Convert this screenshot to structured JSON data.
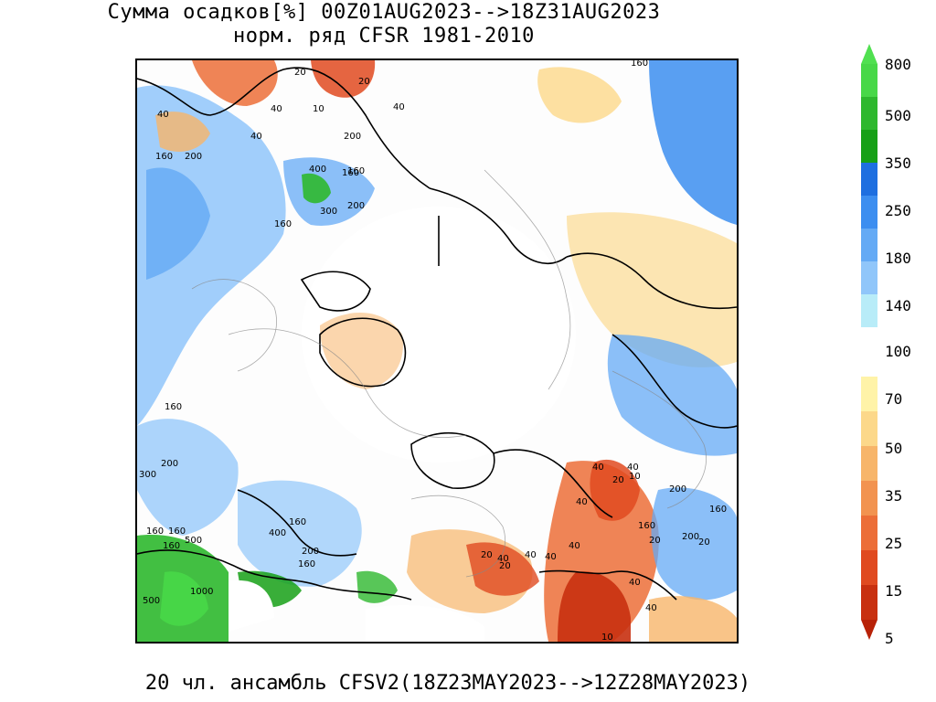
{
  "title": {
    "line1": "Сумма осадков[%] 00Z01AUG2023-->18Z31AUG2023",
    "line2": "норм. ряд CFSR 1981-2010"
  },
  "footer": "20 чл. ансамбль CFSV2(18Z23MAY2023-->12Z28MAY2023)",
  "colorbar": {
    "levels": [
      "800",
      "500",
      "350",
      "250",
      "180",
      "140",
      "100",
      "70",
      "50",
      "35",
      "25",
      "15",
      "5"
    ],
    "colors_wet": [
      "#48d848",
      "#2eb82e",
      "#16a016",
      "#1e6fe0",
      "#3c8ef0",
      "#64aaf5",
      "#90c6fa",
      "#b8ecf8"
    ],
    "colors_dry": [
      "#fff3a8",
      "#fcd88a",
      "#f7b56a",
      "#f29350",
      "#ec6e38",
      "#e04a20",
      "#c83010"
    ],
    "top_arrow_color": "#50e050",
    "bottom_arrow_color": "#b82208"
  },
  "map": {
    "contour_labels": [
      {
        "text": "20"
      },
      {
        "text": "20"
      },
      {
        "text": "10"
      },
      {
        "text": "40"
      },
      {
        "text": "40"
      },
      {
        "text": "40"
      },
      {
        "text": "40"
      },
      {
        "text": "200"
      },
      {
        "text": "160"
      },
      {
        "text": "200"
      },
      {
        "text": "160"
      },
      {
        "text": "400"
      },
      {
        "text": "160"
      },
      {
        "text": "300"
      },
      {
        "text": "200"
      },
      {
        "text": "160"
      },
      {
        "text": "200"
      },
      {
        "text": "300"
      },
      {
        "text": "160"
      },
      {
        "text": "160"
      },
      {
        "text": "400"
      },
      {
        "text": "500"
      },
      {
        "text": "1000"
      },
      {
        "text": "500"
      },
      {
        "text": "160"
      },
      {
        "text": "200"
      },
      {
        "text": "160"
      },
      {
        "text": "40"
      },
      {
        "text": "40"
      },
      {
        "text": "20"
      },
      {
        "text": "10"
      },
      {
        "text": "40"
      },
      {
        "text": "200"
      },
      {
        "text": "160"
      },
      {
        "text": "160"
      },
      {
        "text": "20"
      },
      {
        "text": "40"
      },
      {
        "text": "40"
      },
      {
        "text": "20"
      },
      {
        "text": "40"
      },
      {
        "text": "20"
      },
      {
        "text": "200"
      },
      {
        "text": "20"
      },
      {
        "text": "40"
      },
      {
        "text": "40"
      },
      {
        "text": "40"
      },
      {
        "text": "10"
      },
      {
        "text": "160"
      },
      {
        "text": "160"
      },
      {
        "text": "160"
      }
    ]
  }
}
